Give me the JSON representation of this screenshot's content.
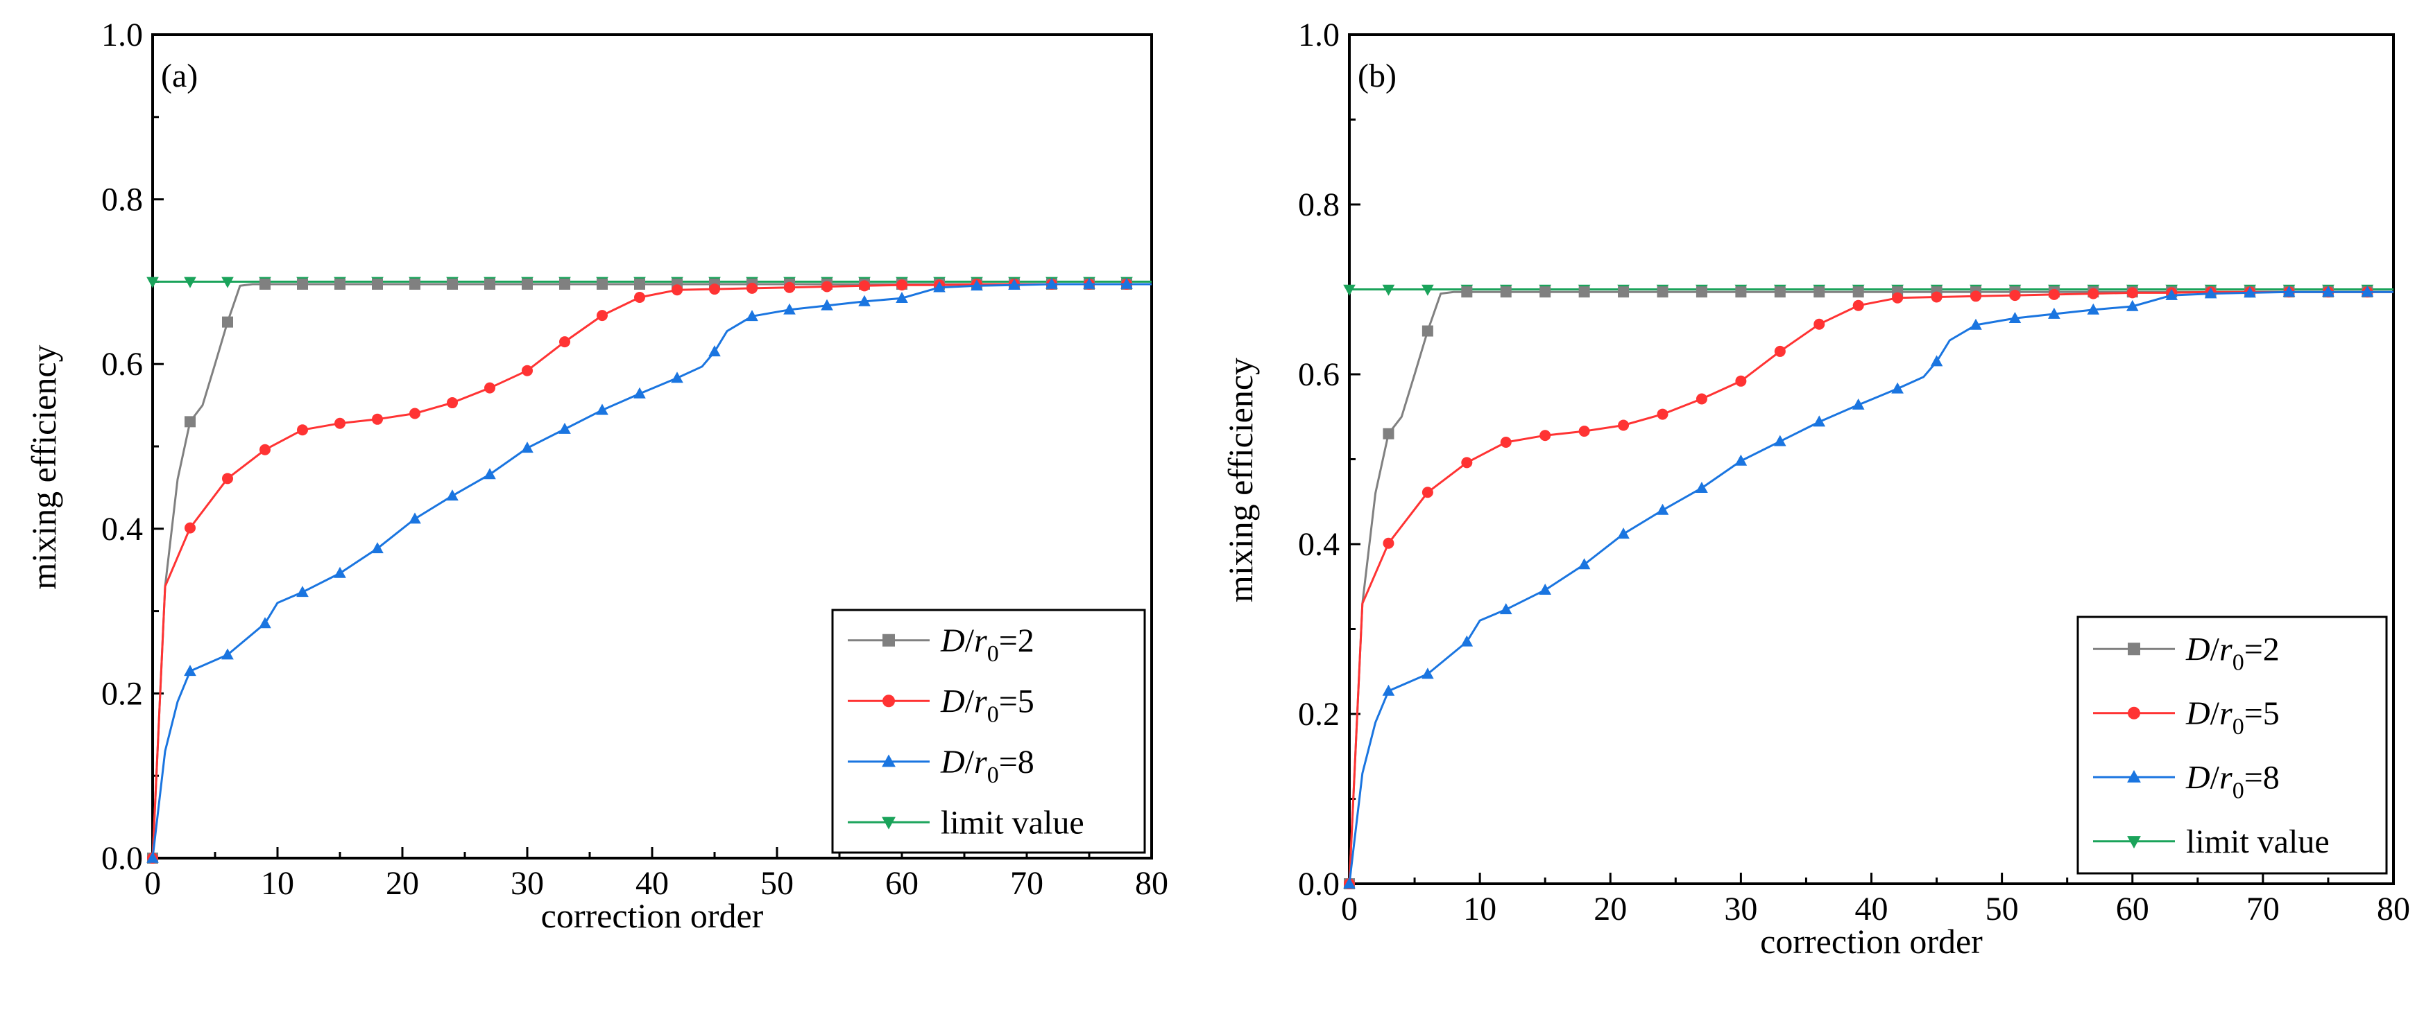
{
  "chart_data": [
    {
      "type": "line",
      "panel_label": "(a)",
      "xlabel": "correction order",
      "ylabel": "mixing efficiency",
      "xlim": [
        0,
        80
      ],
      "ylim": [
        0,
        1.0
      ],
      "xticks": [
        "0",
        "10",
        "20",
        "30",
        "40",
        "50",
        "60",
        "70",
        "80"
      ],
      "yticks": [
        "0.0",
        "0.2",
        "0.4",
        "0.6",
        "0.8",
        "1.0"
      ],
      "legend_position": "bottom-right",
      "series": [
        {
          "name": "D/r0=2",
          "legend_base": "D/r",
          "legend_sub": "0",
          "legend_suffix": "=2",
          "color": "#808080",
          "marker": "square",
          "x": [
            0,
            1,
            2,
            3,
            4,
            5,
            6,
            7,
            8,
            9,
            12,
            15,
            18,
            21,
            24,
            27,
            30,
            33,
            36,
            39,
            42,
            45,
            48,
            51,
            54,
            57,
            60,
            63,
            66,
            69,
            72,
            75,
            78,
            80
          ],
          "y": [
            0.0,
            0.33,
            0.46,
            0.53,
            0.55,
            0.6,
            0.651,
            0.695,
            0.697,
            0.697,
            0.697,
            0.697,
            0.697,
            0.697,
            0.697,
            0.697,
            0.697,
            0.697,
            0.697,
            0.697,
            0.697,
            0.697,
            0.697,
            0.697,
            0.697,
            0.697,
            0.697,
            0.697,
            0.697,
            0.697,
            0.697,
            0.697,
            0.697,
            0.697
          ],
          "marker_x": [
            0,
            3,
            6,
            9,
            12,
            15,
            18,
            21,
            24,
            27,
            30,
            33,
            36,
            39,
            42,
            45,
            48,
            51,
            54,
            57,
            60,
            63,
            66,
            69,
            72,
            75,
            78
          ]
        },
        {
          "name": "D/r0=5",
          "legend_base": "D/r",
          "legend_sub": "0",
          "legend_suffix": "=5",
          "color": "#ff3333",
          "marker": "circle",
          "x": [
            0,
            1,
            3,
            6,
            9,
            12,
            15,
            18,
            21,
            24,
            27,
            30,
            33,
            36,
            39,
            42,
            45,
            48,
            51,
            54,
            57,
            60,
            63,
            66,
            69,
            72,
            75,
            78,
            80
          ],
          "y": [
            0.0,
            0.33,
            0.401,
            0.461,
            0.496,
            0.52,
            0.528,
            0.533,
            0.54,
            0.553,
            0.571,
            0.592,
            0.627,
            0.659,
            0.681,
            0.69,
            0.691,
            0.692,
            0.693,
            0.694,
            0.695,
            0.696,
            0.696,
            0.697,
            0.697,
            0.697,
            0.697,
            0.697,
            0.697
          ],
          "marker_x": [
            0,
            3,
            6,
            9,
            12,
            15,
            18,
            21,
            24,
            27,
            30,
            33,
            36,
            39,
            42,
            45,
            48,
            51,
            54,
            57,
            60,
            63,
            66,
            69,
            72,
            75,
            78
          ]
        },
        {
          "name": "D/r0=8",
          "legend_base": "D/r",
          "legend_sub": "0",
          "legend_suffix": "=8",
          "color": "#1a75e0",
          "marker": "triangle-up",
          "x": [
            0,
            1,
            2,
            3,
            6,
            9,
            10,
            12,
            15,
            18,
            21,
            24,
            27,
            30,
            33,
            36,
            39,
            42,
            44,
            45,
            46,
            48,
            51,
            54,
            57,
            60,
            63,
            66,
            69,
            72,
            75,
            78,
            80
          ],
          "y": [
            0.0,
            0.13,
            0.19,
            0.227,
            0.247,
            0.285,
            0.31,
            0.323,
            0.346,
            0.376,
            0.412,
            0.44,
            0.466,
            0.498,
            0.521,
            0.544,
            0.564,
            0.583,
            0.597,
            0.615,
            0.64,
            0.658,
            0.666,
            0.671,
            0.676,
            0.68,
            0.693,
            0.695,
            0.696,
            0.697,
            0.697,
            0.697,
            0.697
          ],
          "marker_x": [
            0,
            3,
            6,
            9,
            12,
            15,
            18,
            21,
            24,
            27,
            30,
            33,
            36,
            39,
            42,
            45,
            48,
            51,
            54,
            57,
            60,
            63,
            66,
            69,
            72,
            75,
            78
          ]
        },
        {
          "name": "limit value",
          "legend_base": "limit value",
          "legend_sub": "",
          "legend_suffix": "",
          "color": "#1aa35a",
          "marker": "triangle-down",
          "x": [
            0,
            80
          ],
          "y": [
            0.7,
            0.7
          ],
          "marker_x": [
            0,
            3,
            6,
            9,
            12,
            15,
            18,
            21,
            24,
            27,
            30,
            33,
            36,
            39,
            42,
            45,
            48,
            51,
            54,
            57,
            60,
            63,
            66,
            69,
            72,
            75,
            78
          ]
        }
      ]
    },
    {
      "type": "line",
      "panel_label": "(b)",
      "xlabel": "correction order",
      "ylabel": "mixing efficiency",
      "xlim": [
        0,
        80
      ],
      "ylim": [
        0,
        1.0
      ],
      "xticks": [
        "0",
        "10",
        "20",
        "30",
        "40",
        "50",
        "60",
        "70",
        "80"
      ],
      "yticks": [
        "0.0",
        "0.2",
        "0.4",
        "0.6",
        "0.8",
        "1.0"
      ],
      "legend_position": "bottom-right",
      "series": [
        {
          "name": "D/r0=2",
          "legend_base": "D/r",
          "legend_sub": "0",
          "legend_suffix": "=2",
          "color": "#808080",
          "marker": "square",
          "x": [
            0,
            1,
            2,
            3,
            4,
            5,
            6,
            7,
            8,
            9,
            12,
            15,
            18,
            21,
            24,
            27,
            30,
            33,
            36,
            39,
            42,
            45,
            48,
            51,
            54,
            57,
            60,
            63,
            66,
            69,
            72,
            75,
            78,
            80
          ],
          "y": [
            0.0,
            0.33,
            0.46,
            0.53,
            0.55,
            0.6,
            0.651,
            0.695,
            0.697,
            0.697,
            0.697,
            0.697,
            0.697,
            0.697,
            0.697,
            0.697,
            0.697,
            0.697,
            0.697,
            0.697,
            0.697,
            0.697,
            0.697,
            0.697,
            0.697,
            0.697,
            0.697,
            0.697,
            0.697,
            0.697,
            0.697,
            0.697,
            0.697,
            0.697
          ],
          "marker_x": [
            0,
            3,
            6,
            9,
            12,
            15,
            18,
            21,
            24,
            27,
            30,
            33,
            36,
            39,
            42,
            45,
            48,
            51,
            54,
            57,
            60,
            63,
            66,
            69,
            72,
            75,
            78
          ]
        },
        {
          "name": "D/r0=5",
          "legend_base": "D/r",
          "legend_sub": "0",
          "legend_suffix": "=5",
          "color": "#ff3333",
          "marker": "circle",
          "x": [
            0,
            1,
            3,
            6,
            9,
            12,
            15,
            18,
            21,
            24,
            27,
            30,
            33,
            36,
            39,
            42,
            45,
            48,
            51,
            54,
            57,
            60,
            63,
            66,
            69,
            72,
            75,
            78,
            80
          ],
          "y": [
            0.0,
            0.33,
            0.401,
            0.461,
            0.496,
            0.52,
            0.528,
            0.533,
            0.54,
            0.553,
            0.571,
            0.592,
            0.627,
            0.659,
            0.681,
            0.69,
            0.691,
            0.692,
            0.693,
            0.694,
            0.695,
            0.696,
            0.696,
            0.697,
            0.697,
            0.697,
            0.697,
            0.697,
            0.697
          ],
          "marker_x": [
            0,
            3,
            6,
            9,
            12,
            15,
            18,
            21,
            24,
            27,
            30,
            33,
            36,
            39,
            42,
            45,
            48,
            51,
            54,
            57,
            60,
            63,
            66,
            69,
            72,
            75,
            78
          ]
        },
        {
          "name": "D/r0=8",
          "legend_base": "D/r",
          "legend_sub": "0",
          "legend_suffix": "=8",
          "color": "#1a75e0",
          "marker": "triangle-up",
          "x": [
            0,
            1,
            2,
            3,
            6,
            9,
            10,
            12,
            15,
            18,
            21,
            24,
            27,
            30,
            33,
            36,
            39,
            42,
            44,
            45,
            46,
            48,
            51,
            54,
            57,
            60,
            63,
            66,
            69,
            72,
            75,
            78,
            80
          ],
          "y": [
            0.0,
            0.13,
            0.19,
            0.227,
            0.247,
            0.285,
            0.31,
            0.323,
            0.346,
            0.376,
            0.412,
            0.44,
            0.466,
            0.498,
            0.521,
            0.544,
            0.564,
            0.583,
            0.597,
            0.615,
            0.64,
            0.658,
            0.666,
            0.671,
            0.676,
            0.68,
            0.693,
            0.695,
            0.696,
            0.697,
            0.697,
            0.697,
            0.697
          ],
          "marker_x": [
            0,
            3,
            6,
            9,
            12,
            15,
            18,
            21,
            24,
            27,
            30,
            33,
            36,
            39,
            42,
            45,
            48,
            51,
            54,
            57,
            60,
            63,
            66,
            69,
            72,
            75,
            78
          ]
        },
        {
          "name": "limit value",
          "legend_base": "limit value",
          "legend_sub": "",
          "legend_suffix": "",
          "color": "#1aa35a",
          "marker": "triangle-down",
          "x": [
            0,
            80
          ],
          "y": [
            0.7,
            0.7
          ],
          "marker_x": [
            0,
            3,
            6,
            9,
            12,
            15,
            18,
            21,
            24,
            27,
            30,
            33,
            36,
            39,
            42,
            45,
            48,
            51,
            54,
            57,
            60,
            63,
            66,
            69,
            72,
            75,
            78
          ]
        }
      ]
    }
  ]
}
